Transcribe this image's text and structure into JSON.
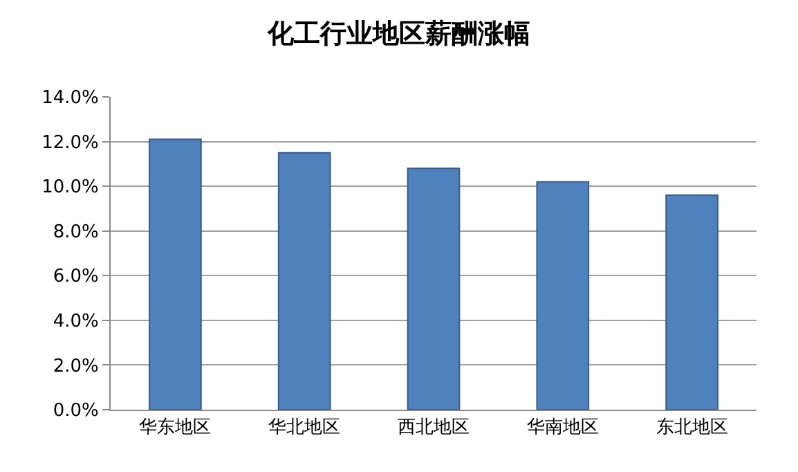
{
  "chart_data": {
    "type": "bar",
    "title": "化工行业地区薪酬涨幅",
    "categories": [
      "华东地区",
      "华北地区",
      "西北地区",
      "华南地区",
      "东北地区"
    ],
    "values": [
      12.1,
      11.5,
      10.8,
      10.2,
      9.6
    ],
    "color": "#4f81bd",
    "ylim": [
      0,
      14
    ],
    "yticks": [
      {
        "value": 0,
        "label": "0.0%"
      },
      {
        "value": 2,
        "label": "2.0%"
      },
      {
        "value": 4,
        "label": "4.0%"
      },
      {
        "value": 6,
        "label": "6.0%"
      },
      {
        "value": 8,
        "label": "8.0%"
      },
      {
        "value": 10,
        "label": "10.0%"
      },
      {
        "value": 12,
        "label": "12.0%"
      },
      {
        "value": 14,
        "label": "14.0%"
      }
    ],
    "grid": "y"
  }
}
